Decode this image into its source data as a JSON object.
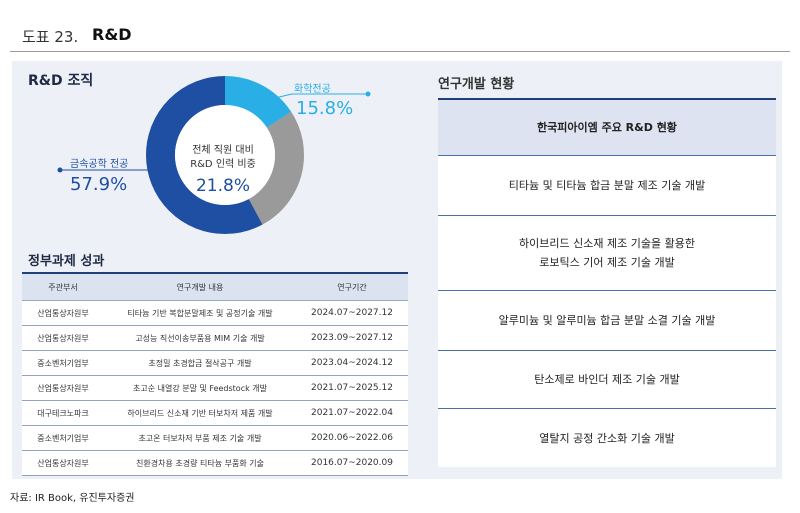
{
  "figure": {
    "number": "도표 23.",
    "title": "R&D"
  },
  "org": {
    "title": "R&D 조직",
    "center_label": "전체 직원 대비\nR&D 인력 비중",
    "center_value": "21.8%",
    "segments": [
      {
        "label": "화학전공",
        "value_text": "15.8%",
        "value": 15.8,
        "color": "#29aee6"
      },
      {
        "label": "",
        "value_text": "",
        "value": 26.3,
        "color": "#9a9a9a"
      },
      {
        "label": "금속공학 전공",
        "value_text": "57.9%",
        "value": 57.9,
        "color": "#1f4fa3"
      }
    ]
  },
  "gov": {
    "title": "정부과제 성과",
    "headers": [
      "주관부서",
      "연구개발 내용",
      "연구기간"
    ],
    "rows": [
      [
        "산업통상자원부",
        "티타늄 기반 복합분말제조 및 공정기술 개발",
        "2024.07~2027.12"
      ],
      [
        "산업통상자원부",
        "고성능 직선이송부품용 MIM 기술 개발",
        "2023.09~2027.12"
      ],
      [
        "중소벤처기업부",
        "초정밀 초경합금 절삭공구 개발",
        "2023.04~2024.12"
      ],
      [
        "산업통상자원부",
        "초고순 내열강 분말 및 Feedstock 개발",
        "2021.07~2025.12"
      ],
      [
        "대구테크노파크",
        "하이브리드 신소재 기반 터보차저 제품 개발",
        "2021.07~2022.04"
      ],
      [
        "중소벤처기업부",
        "초고온 터보차저 부품 제조 기술 개발",
        "2020.06~2022.06"
      ],
      [
        "산업통상자원부",
        "친환경차용 초경량 티타늄 부품화 기술",
        "2016.07~2020.09"
      ]
    ]
  },
  "rd": {
    "title": "연구개발 현황",
    "header": "한국피아이엠 주요 R&D 현황",
    "items": [
      "티타늄 및 티타늄 합금 분말 제조 기술 개발",
      "하이브리드 신소재 제조 기술을 활용한\n로보틱스 기어 제조 기술 개발",
      "알루미늄 및 알루미늄 합금 분말 소결 기술 개발",
      "탄소제로 바인더 제조 기술 개발",
      "열탈지 공정 간소화 기술 개발"
    ]
  },
  "source": "자료: IR Book, 유진투자증권"
}
